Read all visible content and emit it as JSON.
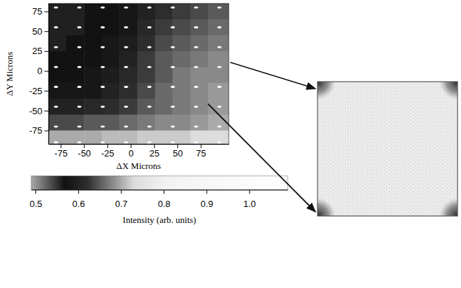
{
  "chart_data": {
    "type": "heatmap",
    "x_label": "ΔX Microns",
    "y_label": "ΔY Microns",
    "xlim": [
      -88,
      105
    ],
    "ylim": [
      -92,
      85
    ],
    "xticks": [
      -75,
      -50,
      -25,
      0,
      25,
      50,
      75
    ],
    "yticks": [
      -75,
      -50,
      -25,
      0,
      25,
      50,
      75
    ],
    "heatmap": {
      "x_edges": [
        -88,
        -69,
        -50,
        -31,
        -12,
        7,
        26,
        45,
        64,
        83,
        105
      ],
      "y_edges": [
        85,
        65,
        45,
        25,
        5,
        -15,
        -35,
        -55,
        -75,
        -92
      ],
      "values": [
        [
          0.56,
          0.56,
          0.57,
          0.57,
          0.58,
          0.6,
          0.62,
          0.63,
          0.64,
          0.65
        ],
        [
          0.56,
          0.56,
          0.57,
          0.57,
          0.58,
          0.61,
          0.63,
          0.64,
          0.65,
          0.66
        ],
        [
          0.56,
          0.57,
          0.57,
          0.58,
          0.59,
          0.62,
          0.64,
          0.65,
          0.66,
          0.67
        ],
        [
          0.57,
          0.57,
          0.57,
          0.58,
          0.6,
          0.63,
          0.65,
          0.66,
          0.67,
          0.68
        ],
        [
          0.57,
          0.57,
          0.58,
          0.59,
          0.61,
          0.63,
          0.65,
          0.67,
          0.68,
          0.68
        ],
        [
          0.58,
          0.58,
          0.58,
          0.6,
          0.62,
          0.64,
          0.66,
          0.67,
          0.68,
          0.69
        ],
        [
          0.6,
          0.6,
          0.61,
          0.62,
          0.63,
          0.65,
          0.66,
          0.67,
          0.68,
          0.69
        ],
        [
          0.64,
          0.64,
          0.65,
          0.65,
          0.66,
          0.67,
          0.68,
          0.68,
          0.69,
          0.7
        ],
        [
          0.7,
          0.7,
          0.7,
          0.71,
          0.71,
          0.72,
          0.72,
          0.72,
          0.73,
          0.73
        ]
      ]
    },
    "spots": {
      "x": [
        -80,
        -55,
        -30,
        -5,
        20,
        45,
        70,
        95
      ],
      "y": [
        80,
        55,
        30,
        5,
        -20,
        -45,
        -70,
        -90
      ],
      "value": 1
    },
    "colorbar": {
      "label": "Intensity (arb. units)",
      "range": [
        0.49,
        1.09
      ],
      "ticks": [
        0.5,
        0.6,
        0.7,
        0.8,
        0.9,
        {
          "value": 1,
          "label": "1.0"
        }
      ]
    }
  }
}
